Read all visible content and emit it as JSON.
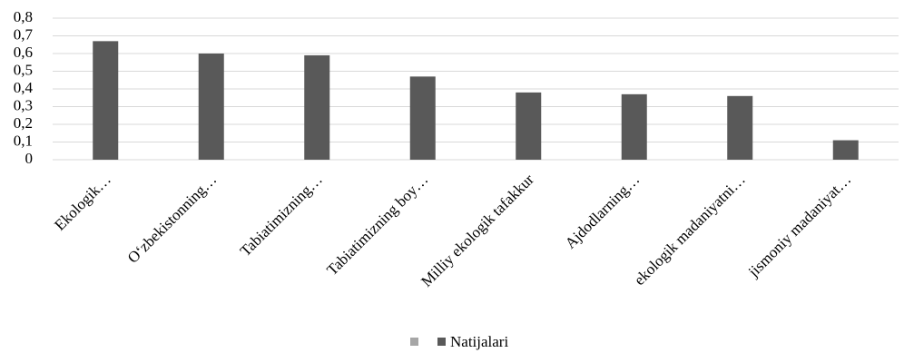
{
  "chart_data": {
    "type": "bar",
    "categories": [
      "Ekologik…",
      "O‘zbekistonning…",
      "Tabiatimizning…",
      "Tabiatimizning boy…",
      "Milliy ekologik tafakkur",
      "Ajdodlarning…",
      "ekologik madaniyatni…",
      "jismoniy madaniyat…"
    ],
    "series": [
      {
        "name": "Natijalari",
        "color": "#595959",
        "values": [
          0.67,
          0.6,
          0.59,
          0.47,
          0.38,
          0.37,
          0.36,
          0.11
        ]
      }
    ],
    "ylim": [
      0,
      0.8
    ],
    "yticks": [
      0,
      {
        "value": 0.1,
        "label": "0,1"
      },
      {
        "value": 0.2,
        "label": "0,2"
      },
      {
        "value": 0.3,
        "label": "0,3"
      },
      {
        "value": 0.4,
        "label": "0,4"
      },
      {
        "value": 0.5,
        "label": "0,5"
      },
      {
        "value": 0.6,
        "label": "0,6"
      },
      {
        "value": 0.7,
        "label": "0,7"
      },
      {
        "value": 0.8,
        "label": "0,8"
      }
    ],
    "grid": true
  }
}
